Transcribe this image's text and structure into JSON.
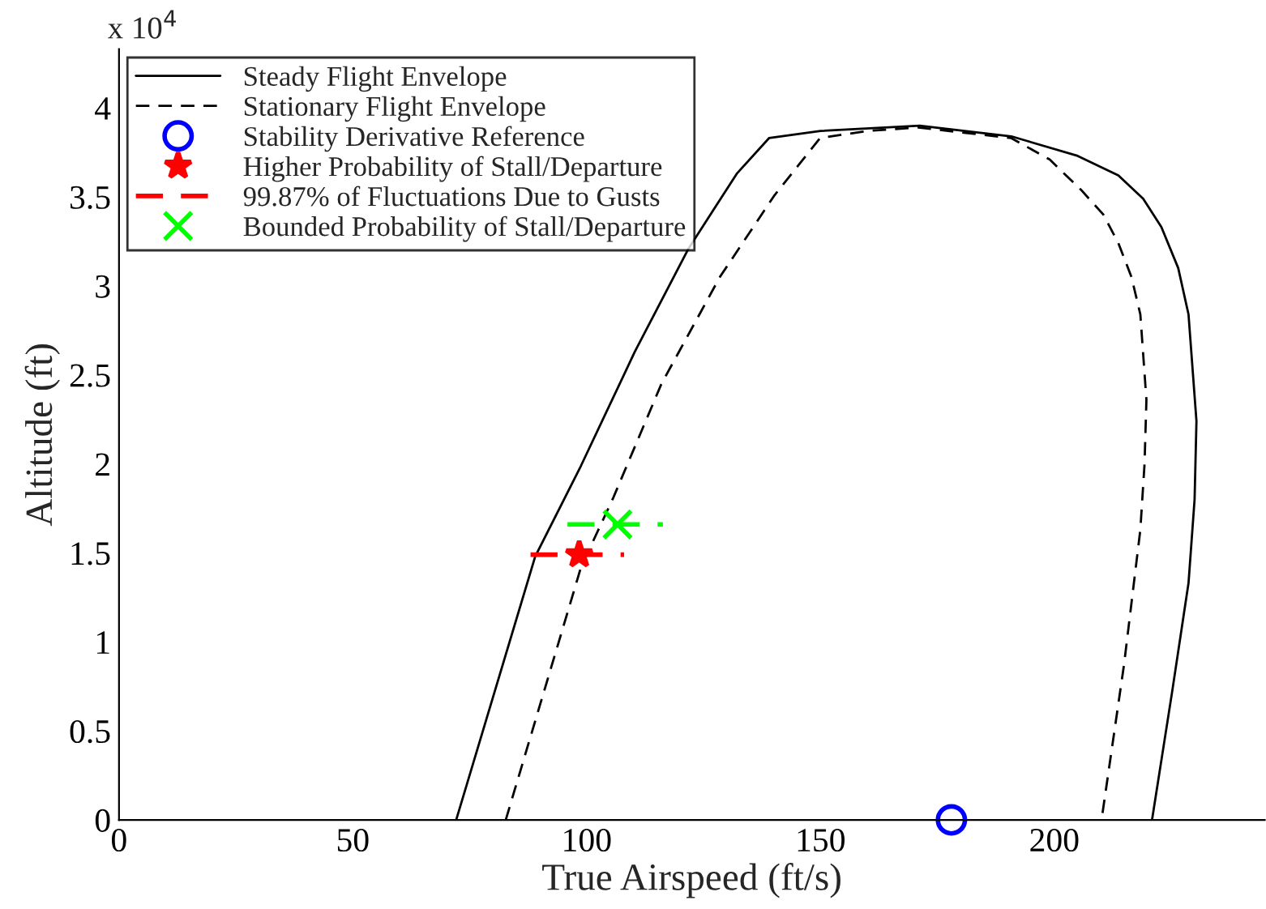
{
  "chart_data": {
    "type": "line",
    "xlabel": "True Airspeed (ft/s)",
    "ylabel": "Altitude (ft)",
    "annotations": [
      "x 10$^{4}$"
    ],
    "xlim": [
      0,
      245
    ],
    "xticks": [
      0,
      50,
      100,
      150,
      200
    ],
    "ylim": [
      0,
      4.33
    ],
    "yticks": [
      0,
      0.5,
      1,
      1.5,
      2,
      2.5,
      3,
      3.5,
      4
    ],
    "grid": false,
    "legend": "top left",
    "series": [
      {
        "name": "Steady Flight Envelope",
        "color": "#000000",
        "line_style": "solid",
        "marker": "none",
        "x": [
          72.1,
          89.0,
          98.8,
          110.3,
          121.8,
          132.1,
          139.0,
          150.0,
          171.2,
          190.8,
          205.0,
          213.7,
          219.0,
          222.9,
          226.5,
          228.7,
          230.4,
          230.0,
          228.7,
          225.2,
          220.9
        ],
        "values": [
          0,
          1.48,
          1.99,
          2.63,
          3.21,
          3.63,
          3.83,
          3.87,
          3.9,
          3.84,
          3.73,
          3.62,
          3.49,
          3.33,
          3.1,
          2.84,
          2.24,
          1.8,
          1.33,
          0.72,
          0
        ]
      },
      {
        "name": "Stationary Flight Envelope",
        "color": "#000000",
        "line_style": "dashed",
        "marker": "none",
        "x": [
          82.7,
          98.8,
          105.7,
          116.0,
          128.5,
          140.2,
          149.9,
          160.0,
          170.9,
          190.8,
          199.0,
          205.7,
          210.5,
          213.7,
          216.5,
          218.4,
          219.7,
          219.3,
          218.4,
          214.9,
          210.1
        ],
        "values": [
          0,
          1.42,
          1.81,
          2.45,
          3.05,
          3.51,
          3.83,
          3.87,
          3.89,
          3.83,
          3.71,
          3.54,
          3.4,
          3.24,
          3.05,
          2.84,
          2.36,
          2.0,
          1.63,
          0.87,
          0
        ]
      },
      {
        "name": "Stability Derivative Reference",
        "type": "scatter",
        "color": "#0000ff",
        "marker": "circle",
        "x": [
          178
        ],
        "values": [
          0
        ]
      },
      {
        "name": "Higher Probability of Stall/Departure",
        "type": "scatter",
        "color": "#ff0000",
        "marker": "star",
        "x": [
          98.4
        ],
        "values": [
          1.49
        ]
      },
      {
        "name": "99.87% of Fluctuations Due to Gusts",
        "color": "#ff0000",
        "line_style": "dashed",
        "marker": "none",
        "x": [
          88.0,
          108.0
        ],
        "values": [
          1.49,
          1.49
        ]
      },
      {
        "name": "Bounded Probability of Stall/Departure",
        "type": "scatter",
        "color": "#00ff00",
        "marker": "cross",
        "x": [
          106.6
        ],
        "values": [
          1.66
        ]
      },
      {
        "color": "#00ff00",
        "line_style": "dashed",
        "marker": "none",
        "x": [
          95.9,
          116.3
        ],
        "values": [
          1.66,
          1.66
        ]
      }
    ]
  }
}
